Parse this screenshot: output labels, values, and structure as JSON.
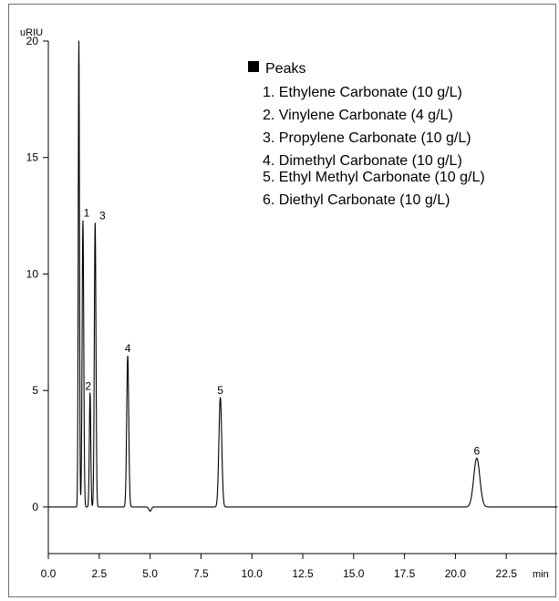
{
  "chart_data": {
    "type": "line",
    "x_unit": "min",
    "y_unit": "uRIU",
    "xlim": [
      0,
      25
    ],
    "ylim": [
      -2,
      20
    ],
    "x_ticks": [
      0.0,
      2.5,
      5.0,
      7.5,
      10.0,
      12.5,
      15.0,
      17.5,
      20.0,
      22.5
    ],
    "x_tick_labels": [
      "0.0",
      "2.5",
      "5.0",
      "7.5",
      "10.0",
      "12.5",
      "15.0",
      "17.5",
      "20.0",
      "22.5"
    ],
    "y_ticks": [
      0,
      5,
      10,
      15,
      20
    ],
    "y_tick_labels": [
      "0",
      "5",
      "10",
      "15",
      "20"
    ],
    "grid": false,
    "legend": {
      "title": "Peaks",
      "placement": "top-right",
      "items": [
        "1. Ethylene Carbonate (10 g/L)",
        "2. Vinylene Carbonate (4 g/L)",
        "3. Propylene Carbonate (10 g/L)",
        "4. Dimethyl Carbonate (10 g/L)",
        "5. Ethyl Methyl Carbonate (10 g/L)",
        "6. Diethyl Carbonate (10 g/L)"
      ]
    },
    "peaks": [
      {
        "label": "1",
        "time": 1.7,
        "height": 12.3
      },
      {
        "label": "2",
        "time": 2.05,
        "height": 4.9
      },
      {
        "label": "3",
        "time": 2.3,
        "height": 12.2
      },
      {
        "label": "4",
        "time": 3.9,
        "height": 6.5
      },
      {
        "label": "5",
        "time": 8.45,
        "height": 4.7
      },
      {
        "label": "6",
        "time": 21.05,
        "height": 2.1
      }
    ],
    "solvent_peak": {
      "time": 1.5,
      "height": 20
    }
  }
}
